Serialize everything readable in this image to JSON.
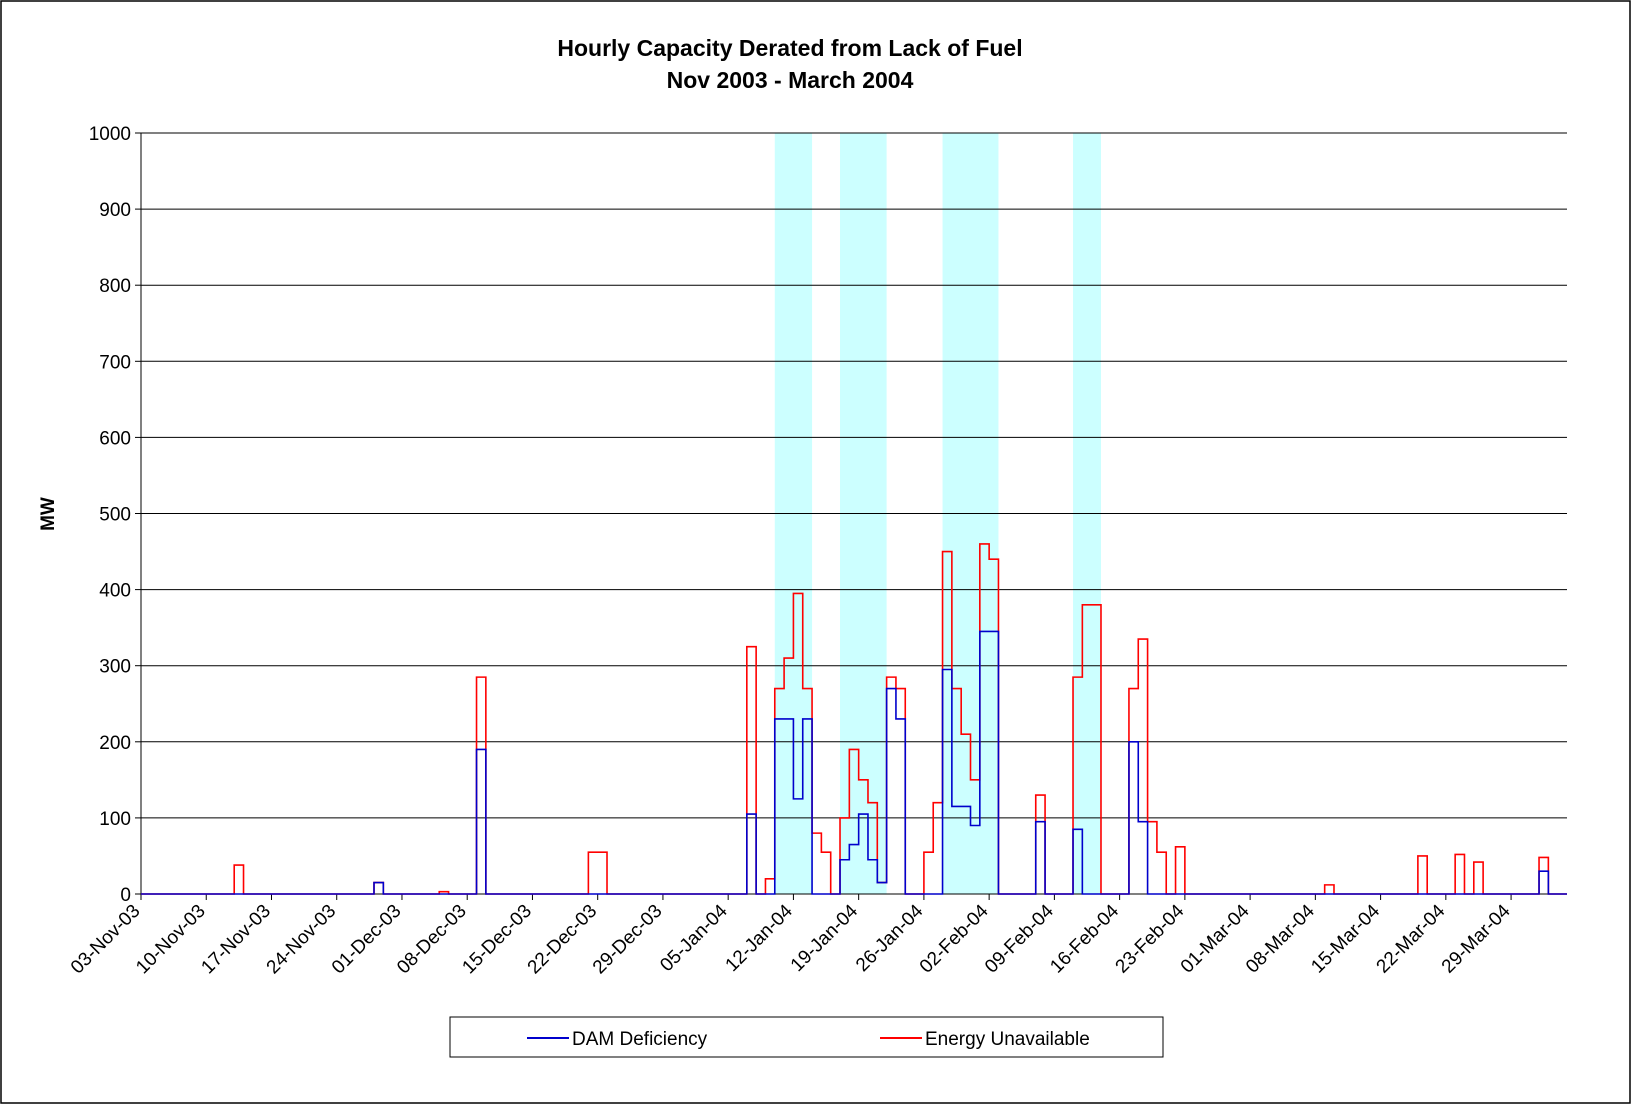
{
  "chart_data": {
    "type": "line",
    "title": "Hourly Capacity Derated from Lack of Fuel",
    "subtitle": "Nov 2003 - March 2004",
    "y_label": "MW",
    "xlim": [
      "2003-11-03",
      "2004-04-04"
    ],
    "ylim": [
      0,
      1000
    ],
    "yticks": [
      0,
      100,
      200,
      300,
      400,
      500,
      600,
      700,
      800,
      900,
      1000
    ],
    "xticks": [
      {
        "value": "2003-11-03",
        "label": "03-Nov-03"
      },
      {
        "value": "2003-11-10",
        "label": "10-Nov-03"
      },
      {
        "value": "2003-11-17",
        "label": "17-Nov-03"
      },
      {
        "value": "2003-11-24",
        "label": "24-Nov-03"
      },
      {
        "value": "2003-12-01",
        "label": "01-Dec-03"
      },
      {
        "value": "2003-12-08",
        "label": "08-Dec-03"
      },
      {
        "value": "2003-12-15",
        "label": "15-Dec-03"
      },
      {
        "value": "2003-12-22",
        "label": "22-Dec-03"
      },
      {
        "value": "2003-12-29",
        "label": "29-Dec-03"
      },
      {
        "value": "2004-01-05",
        "label": "05-Jan-04"
      },
      {
        "value": "2004-01-12",
        "label": "12-Jan-04"
      },
      {
        "value": "2004-01-19",
        "label": "19-Jan-04"
      },
      {
        "value": "2004-01-26",
        "label": "26-Jan-04"
      },
      {
        "value": "2004-02-02",
        "label": "02-Feb-04"
      },
      {
        "value": "2004-02-09",
        "label": "09-Feb-04"
      },
      {
        "value": "2004-02-16",
        "label": "16-Feb-04"
      },
      {
        "value": "2004-02-23",
        "label": "23-Feb-04"
      },
      {
        "value": "2004-03-01",
        "label": "01-Mar-04"
      },
      {
        "value": "2004-03-08",
        "label": "08-Mar-04"
      },
      {
        "value": "2004-03-15",
        "label": "15-Mar-04"
      },
      {
        "value": "2004-03-22",
        "label": "22-Mar-04"
      },
      {
        "value": "2004-03-29",
        "label": "29-Mar-04"
      }
    ],
    "grid": true,
    "step": true,
    "bands": [
      {
        "start": "2004-01-10",
        "end": "2004-01-14"
      },
      {
        "start": "2004-01-17",
        "end": "2004-01-22"
      },
      {
        "start": "2004-01-28",
        "end": "2004-02-03"
      },
      {
        "start": "2004-02-11",
        "end": "2004-02-14"
      }
    ],
    "band_color": "#ccffff",
    "x": [
      "2003-11-03",
      "2003-11-13",
      "2003-11-14",
      "2003-11-28",
      "2003-11-29",
      "2003-12-05",
      "2003-12-06",
      "2003-12-09",
      "2003-12-10",
      "2003-12-21",
      "2003-12-23",
      "2004-01-07",
      "2004-01-08",
      "2004-01-09",
      "2004-01-10",
      "2004-01-11",
      "2004-01-12",
      "2004-01-13",
      "2004-01-14",
      "2004-01-15",
      "2004-01-16",
      "2004-01-17",
      "2004-01-18",
      "2004-01-19",
      "2004-01-20",
      "2004-01-21",
      "2004-01-22",
      "2004-01-23",
      "2004-01-24",
      "2004-01-26",
      "2004-01-27",
      "2004-01-28",
      "2004-01-29",
      "2004-01-30",
      "2004-01-31",
      "2004-02-01",
      "2004-02-02",
      "2004-02-03",
      "2004-02-07",
      "2004-02-08",
      "2004-02-11",
      "2004-02-12",
      "2004-02-14",
      "2004-02-17",
      "2004-02-18",
      "2004-02-19",
      "2004-02-20",
      "2004-02-21",
      "2004-02-22",
      "2004-02-23",
      "2004-03-09",
      "2004-03-10",
      "2004-03-19",
      "2004-03-20",
      "2004-03-23",
      "2004-03-24",
      "2004-03-25",
      "2004-03-26",
      "2004-04-01",
      "2004-04-02"
    ],
    "series": [
      {
        "name": "Energy Unavailable",
        "color": "#ff0000",
        "values": [
          0,
          38,
          0,
          15,
          0,
          3,
          0,
          285,
          0,
          55,
          0,
          325,
          0,
          20,
          270,
          310,
          395,
          270,
          80,
          55,
          0,
          100,
          190,
          150,
          120,
          15,
          285,
          270,
          0,
          55,
          120,
          450,
          270,
          210,
          150,
          460,
          440,
          0,
          130,
          0,
          285,
          380,
          0,
          270,
          335,
          95,
          55,
          0,
          62,
          0,
          12,
          0,
          50,
          0,
          52,
          0,
          42,
          0,
          48,
          0
        ]
      },
      {
        "name": "DAM Deficiency",
        "color": "#0000cc",
        "values": [
          0,
          0,
          0,
          15,
          0,
          0,
          0,
          190,
          0,
          0,
          0,
          105,
          0,
          0,
          230,
          230,
          125,
          230,
          0,
          0,
          0,
          45,
          65,
          105,
          45,
          15,
          270,
          230,
          0,
          0,
          0,
          295,
          115,
          115,
          90,
          345,
          345,
          0,
          95,
          0,
          85,
          0,
          0,
          200,
          95,
          0,
          0,
          0,
          0,
          0,
          0,
          0,
          0,
          0,
          0,
          0,
          0,
          0,
          30,
          0
        ]
      }
    ],
    "legend_order": [
      1,
      0
    ],
    "legend": "bottom"
  }
}
